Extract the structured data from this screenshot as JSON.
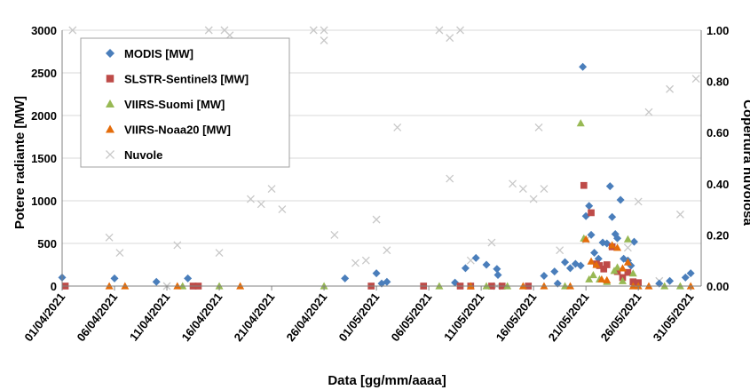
{
  "chart_data": {
    "type": "scatter",
    "xlabel": "Data [gg/mm/aaaa]",
    "ylabel": "Potere radiante [MW]",
    "y2label": "Copertura nuvolosa",
    "xlim": [
      0,
      61
    ],
    "ylim": [
      0,
      3000
    ],
    "y2lim": [
      0,
      1
    ],
    "x_tick_labels": [
      "01/04/2021",
      "06/04/2021",
      "11/04/2021",
      "16/04/2021",
      "21/04/2021",
      "26/04/2021",
      "01/05/2021",
      "06/05/2021",
      "11/05/2021",
      "16/05/2021",
      "21/05/2021",
      "26/05/2021",
      "31/05/2021"
    ],
    "x_tick_days": [
      0,
      5,
      10,
      15,
      20,
      25,
      30,
      35,
      40,
      45,
      50,
      55,
      60
    ],
    "y_ticks": [
      0,
      500,
      1000,
      1500,
      2000,
      2500,
      3000
    ],
    "y_tick_labels": [
      "0",
      "500",
      "1000",
      "1500",
      "2000",
      "2500",
      "3000"
    ],
    "y2_ticks": [
      0,
      0.2,
      0.4,
      0.6,
      0.8,
      1.0
    ],
    "y2_tick_labels": [
      "0.00",
      "0.20",
      "0.40",
      "0.60",
      "0.80",
      "1.00"
    ],
    "grid": "horizontal",
    "legend_position": "top-left",
    "series": [
      {
        "name": "MODIS [MW]",
        "marker": "diamond",
        "color": "#4a7ebb",
        "axis": "left",
        "points": [
          [
            0,
            100
          ],
          [
            5,
            90
          ],
          [
            9,
            50
          ],
          [
            12,
            90
          ],
          [
            27,
            90
          ],
          [
            30,
            150
          ],
          [
            30.5,
            30
          ],
          [
            31,
            50
          ],
          [
            37.5,
            40
          ],
          [
            38.5,
            210
          ],
          [
            39.5,
            330
          ],
          [
            40.5,
            250
          ],
          [
            41.5,
            200
          ],
          [
            41.6,
            130
          ],
          [
            46,
            120
          ],
          [
            47,
            170
          ],
          [
            47.3,
            30
          ],
          [
            48,
            280
          ],
          [
            48.5,
            210
          ],
          [
            49,
            260
          ],
          [
            49.5,
            240
          ],
          [
            49.7,
            2570
          ],
          [
            50,
            820
          ],
          [
            50.3,
            940
          ],
          [
            50.5,
            600
          ],
          [
            50.8,
            390
          ],
          [
            51.2,
            320
          ],
          [
            51.6,
            510
          ],
          [
            52,
            500
          ],
          [
            52.3,
            1170
          ],
          [
            52.5,
            810
          ],
          [
            52.8,
            610
          ],
          [
            53,
            560
          ],
          [
            53.3,
            1010
          ],
          [
            53.6,
            320
          ],
          [
            54,
            300
          ],
          [
            54.3,
            240
          ],
          [
            54.6,
            520
          ],
          [
            57,
            30
          ],
          [
            58,
            60
          ],
          [
            59.5,
            100
          ],
          [
            60,
            150
          ]
        ]
      },
      {
        "name": "SLSTR-Sentinel3 [MW]",
        "marker": "square",
        "color": "#be4b48",
        "axis": "left",
        "points": [
          [
            0.3,
            0
          ],
          [
            12.5,
            0
          ],
          [
            13,
            0
          ],
          [
            29.5,
            0
          ],
          [
            34.5,
            0
          ],
          [
            38,
            0
          ],
          [
            39,
            0
          ],
          [
            41,
            0
          ],
          [
            42,
            0
          ],
          [
            44.5,
            0
          ],
          [
            49.8,
            1180
          ],
          [
            50.5,
            860
          ],
          [
            51,
            260
          ],
          [
            51.3,
            240
          ],
          [
            51.7,
            200
          ],
          [
            52,
            250
          ],
          [
            52.5,
            460
          ],
          [
            53,
            170
          ],
          [
            53.5,
            100
          ],
          [
            54,
            160
          ],
          [
            54.5,
            50
          ],
          [
            55,
            40
          ]
        ]
      },
      {
        "name": "VIIRS-Suomi  [MW]",
        "marker": "triangle",
        "color": "#98b954",
        "axis": "left",
        "points": [
          [
            11.5,
            0
          ],
          [
            15,
            0
          ],
          [
            25,
            0
          ],
          [
            36,
            0
          ],
          [
            40.5,
            0
          ],
          [
            42.5,
            0
          ],
          [
            48,
            0
          ],
          [
            49.5,
            1910
          ],
          [
            49.8,
            560
          ],
          [
            50.3,
            80
          ],
          [
            50.7,
            130
          ],
          [
            51.3,
            80
          ],
          [
            52,
            50
          ],
          [
            52.7,
            180
          ],
          [
            53,
            220
          ],
          [
            53.5,
            60
          ],
          [
            54,
            550
          ],
          [
            54.5,
            150
          ],
          [
            57.5,
            0
          ],
          [
            59,
            0
          ]
        ]
      },
      {
        "name": "VIIRS-Noaa20 [MW]",
        "marker": "triangle",
        "color": "#e46c0a",
        "axis": "left",
        "points": [
          [
            4.5,
            0
          ],
          [
            6,
            0
          ],
          [
            11,
            0
          ],
          [
            17,
            0
          ],
          [
            39,
            0
          ],
          [
            44,
            0
          ],
          [
            46,
            0
          ],
          [
            48.5,
            0
          ],
          [
            50,
            550
          ],
          [
            50.5,
            290
          ],
          [
            51,
            250
          ],
          [
            51.5,
            80
          ],
          [
            52,
            70
          ],
          [
            52.5,
            480
          ],
          [
            53,
            450
          ],
          [
            53.5,
            210
          ],
          [
            54,
            280
          ],
          [
            54.5,
            0
          ],
          [
            55,
            0
          ],
          [
            56,
            0
          ],
          [
            60,
            0
          ]
        ]
      },
      {
        "name": "Nuvole",
        "marker": "x",
        "color": "#c8c8c8",
        "axis": "right",
        "points": [
          [
            1,
            1.0
          ],
          [
            4.5,
            0.19
          ],
          [
            5.5,
            0.13
          ],
          [
            10,
            0.0
          ],
          [
            11,
            0.16
          ],
          [
            14,
            1.0
          ],
          [
            15,
            0.13
          ],
          [
            15.5,
            1.0
          ],
          [
            16,
            0.98
          ],
          [
            18,
            0.34
          ],
          [
            19,
            0.32
          ],
          [
            20,
            0.38
          ],
          [
            21,
            0.3
          ],
          [
            24,
            1.0
          ],
          [
            25,
            1.0
          ],
          [
            25,
            0.96
          ],
          [
            26,
            0.2
          ],
          [
            28,
            0.09
          ],
          [
            29,
            0.1
          ],
          [
            30,
            0.26
          ],
          [
            31,
            0.14
          ],
          [
            32,
            0.62
          ],
          [
            36,
            1.0
          ],
          [
            37,
            0.97
          ],
          [
            37,
            0.42
          ],
          [
            38,
            1.0
          ],
          [
            39,
            0.1
          ],
          [
            41,
            0.17
          ],
          [
            41.5,
            0.0
          ],
          [
            43,
            0.4
          ],
          [
            44,
            0.38
          ],
          [
            45,
            0.34
          ],
          [
            45.5,
            0.62
          ],
          [
            46,
            0.38
          ],
          [
            47.5,
            0.14
          ],
          [
            50,
            0.18
          ],
          [
            54,
            0.15
          ],
          [
            55,
            0.33
          ],
          [
            56,
            0.68
          ],
          [
            57,
            0.02
          ],
          [
            58,
            0.77
          ],
          [
            59,
            0.28
          ],
          [
            60.5,
            0.81
          ]
        ]
      }
    ]
  }
}
